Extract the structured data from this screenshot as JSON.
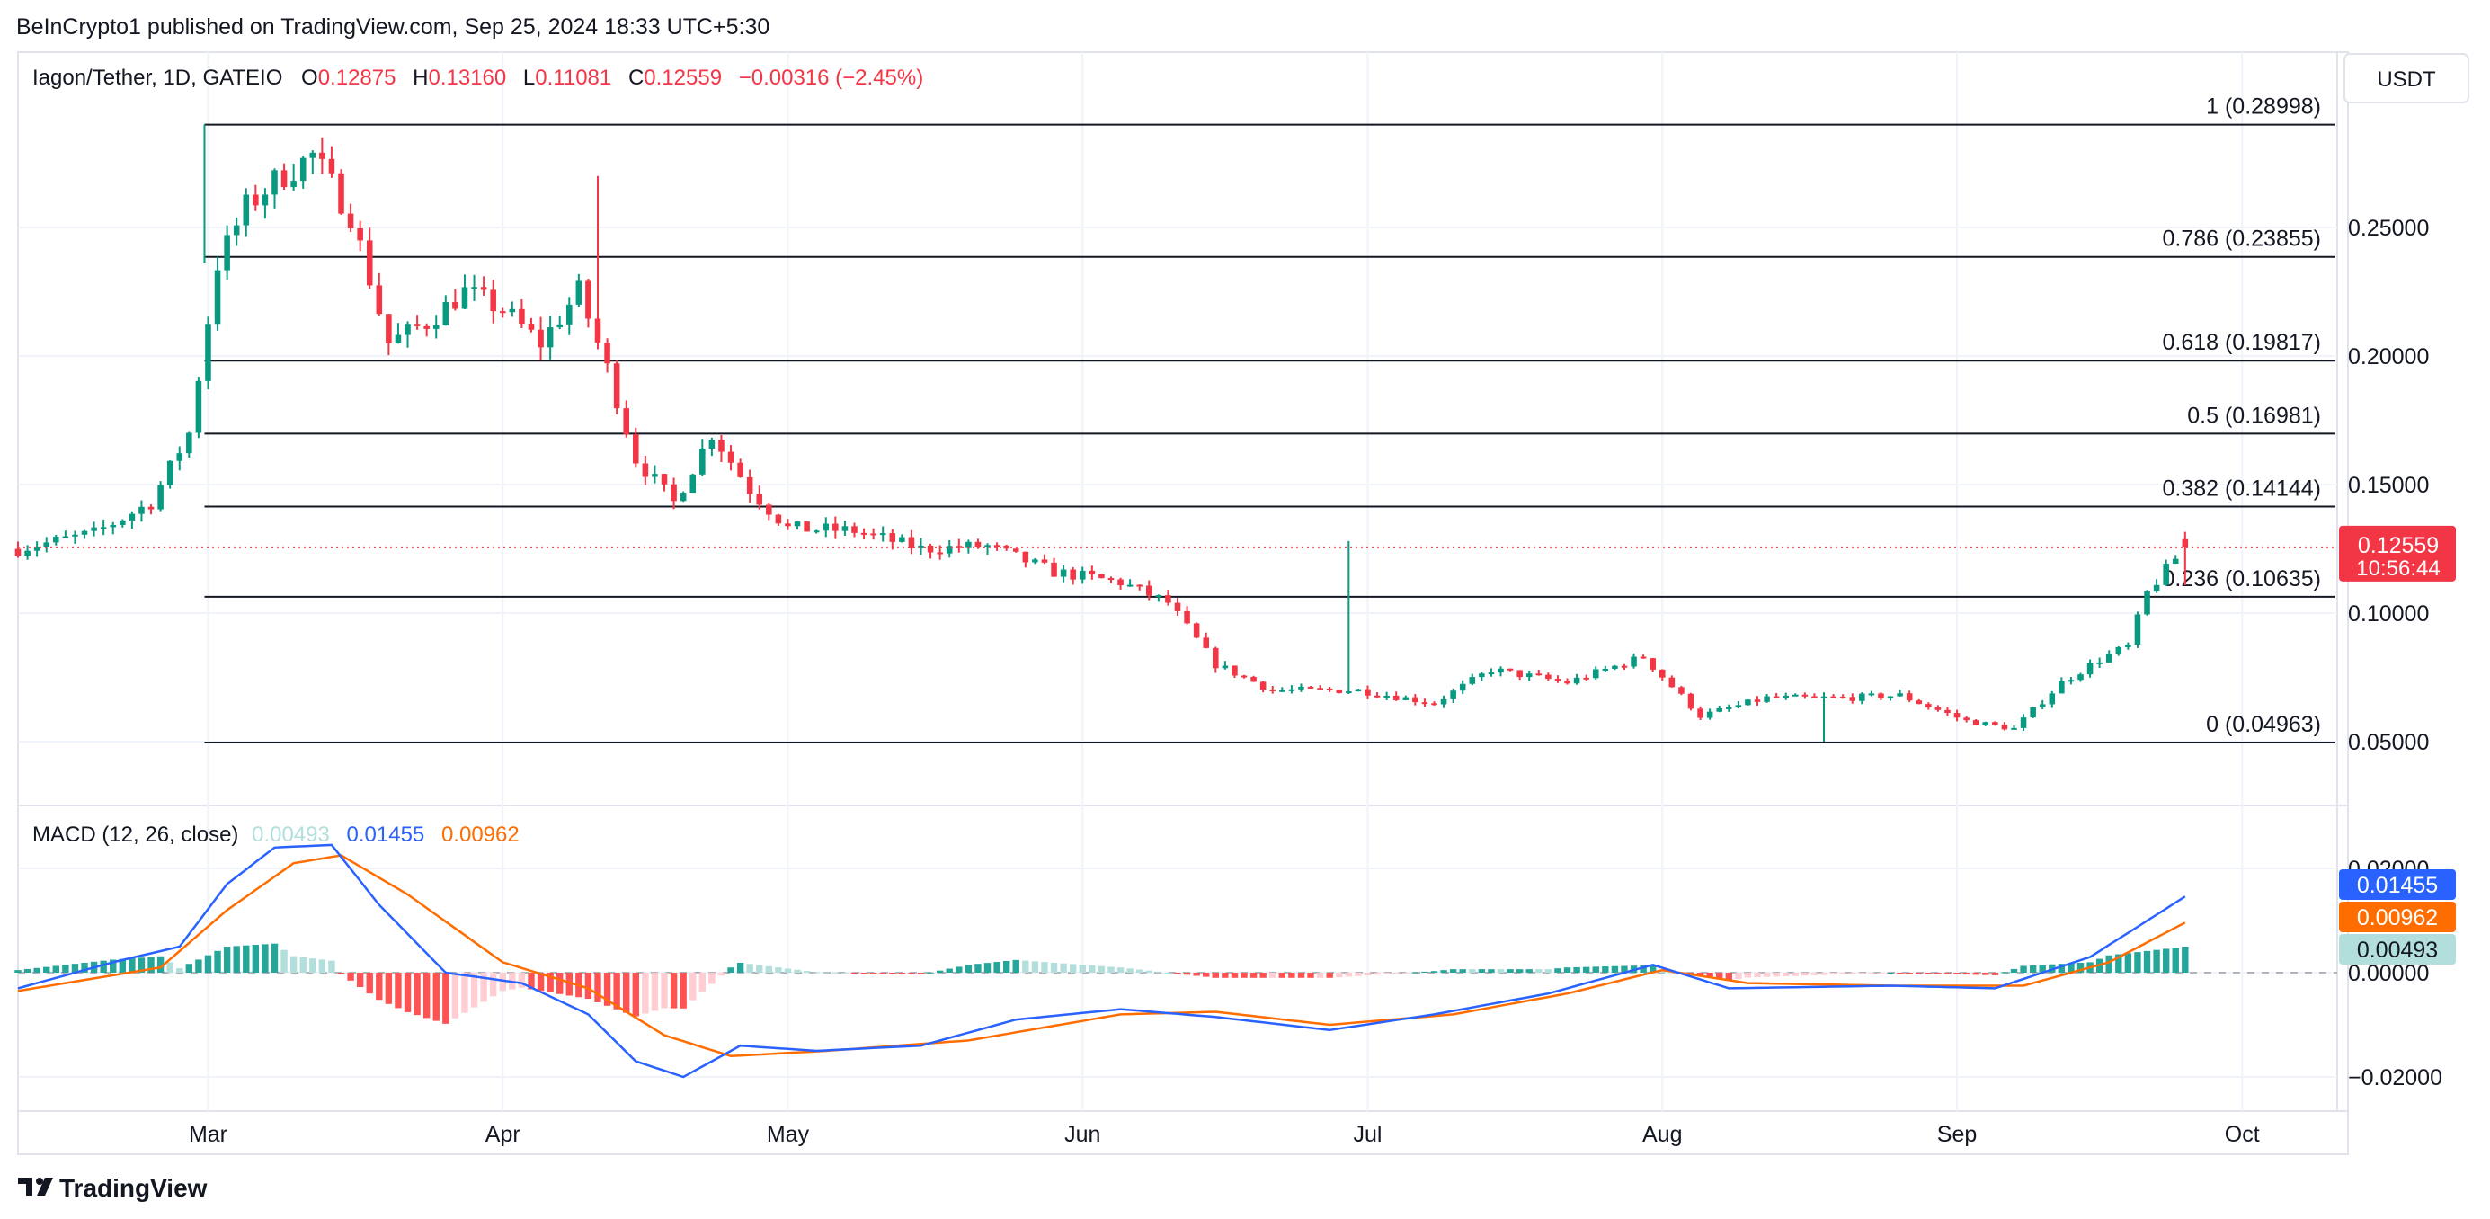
{
  "header": {
    "published": "BeInCrypto1 published on TradingView.com, Sep 25, 2024 18:33 UTC+5:30"
  },
  "legend": {
    "symbol": "Iagon/Tether, 1D, GATEIO",
    "open_label": "O",
    "open": "0.12875",
    "high_label": "H",
    "high": "0.13160",
    "low_label": "L",
    "low": "0.11081",
    "close_label": "C",
    "close": "0.12559",
    "change": "−0.00316 (−2.45%)"
  },
  "currency_button": "USDT",
  "price_axis": {
    "ticks": [
      {
        "value": 0.25,
        "label": "0.25000"
      },
      {
        "value": 0.2,
        "label": "0.20000"
      },
      {
        "value": 0.15,
        "label": "0.15000"
      },
      {
        "value": 0.1,
        "label": "0.10000"
      },
      {
        "value": 0.05,
        "label": "0.05000"
      }
    ],
    "last_price": {
      "label": "0.12559",
      "countdown": "10:56:44",
      "color": "#f23645"
    }
  },
  "macd_axis": {
    "ticks": [
      {
        "value": 0.02,
        "label": "0.02000"
      },
      {
        "value": 0.0,
        "label": "0.00000"
      },
      {
        "value": -0.02,
        "label": "−0.02000"
      }
    ],
    "badges": [
      {
        "label": "0.01455",
        "color": "#2962ff"
      },
      {
        "label": "0.00962",
        "color": "#ff6d00"
      },
      {
        "label": "0.00493",
        "color": "#b2dfdb"
      }
    ]
  },
  "time_axis": {
    "labels": [
      {
        "label": "Mar",
        "date": "2024-03-01"
      },
      {
        "label": "Apr",
        "date": "2024-04-01"
      },
      {
        "label": "May",
        "date": "2024-05-01"
      },
      {
        "label": "Jun",
        "date": "2024-06-01"
      },
      {
        "label": "Jul",
        "date": "2024-07-01"
      },
      {
        "label": "Aug",
        "date": "2024-08-01"
      },
      {
        "label": "Sep",
        "date": "2024-09-01"
      },
      {
        "label": "Oct",
        "date": "2024-10-01"
      }
    ]
  },
  "fibonacci": [
    {
      "label": "1 (0.28998)",
      "value": 0.28998
    },
    {
      "label": "0.786 (0.23855)",
      "value": 0.23855
    },
    {
      "label": "0.618 (0.19817)",
      "value": 0.19817
    },
    {
      "label": "0.5 (0.16981)",
      "value": 0.16981
    },
    {
      "label": "0.382 (0.14144)",
      "value": 0.14144
    },
    {
      "label": "0.236 (0.10635)",
      "value": 0.10635
    },
    {
      "label": "0 (0.04963)",
      "value": 0.04963
    }
  ],
  "macd_legend": {
    "title": "MACD (12, 26, close)",
    "histogram": "0.00493",
    "macd": "0.01455",
    "signal": "0.00962"
  },
  "brand": "TradingView",
  "colors": {
    "up": "#089981",
    "down": "#f23645",
    "macd": "#2962ff",
    "signal": "#ff6d00",
    "hist_up_strong": "#26a69a",
    "hist_up_weak": "#b2dfdb",
    "hist_down_strong": "#ff5252",
    "hist_down_weak": "#ffcdd2"
  },
  "chart_data": {
    "type": "candlestick",
    "x_range": [
      "2024-02-10",
      "2024-10-11"
    ],
    "price_range": [
      0.0,
      0.31
    ],
    "macd_range": [
      -0.0215,
      0.023
    ],
    "price_anchors": [
      [
        "2024-02-10",
        0.125
      ],
      [
        "2024-02-18",
        0.131
      ],
      [
        "2024-02-24",
        0.143
      ],
      [
        "2024-02-28",
        0.17
      ],
      [
        "2024-03-02",
        0.236
      ],
      [
        "2024-03-05",
        0.258
      ],
      [
        "2024-03-08",
        0.268
      ],
      [
        "2024-03-12",
        0.278
      ],
      [
        "2024-03-16",
        0.255
      ],
      [
        "2024-03-20",
        0.205
      ],
      [
        "2024-03-24",
        0.213
      ],
      [
        "2024-03-28",
        0.225
      ],
      [
        "2024-04-01",
        0.218
      ],
      [
        "2024-04-05",
        0.205
      ],
      [
        "2024-04-09",
        0.225
      ],
      [
        "2024-04-12",
        0.195
      ],
      [
        "2024-04-15",
        0.16
      ],
      [
        "2024-04-19",
        0.143
      ],
      [
        "2024-04-23",
        0.17
      ],
      [
        "2024-04-27",
        0.148
      ],
      [
        "2024-05-01",
        0.133
      ],
      [
        "2024-05-08",
        0.132
      ],
      [
        "2024-05-15",
        0.125
      ],
      [
        "2024-05-22",
        0.126
      ],
      [
        "2024-05-29",
        0.116
      ],
      [
        "2024-06-05",
        0.112
      ],
      [
        "2024-06-10",
        0.104
      ],
      [
        "2024-06-15",
        0.08
      ],
      [
        "2024-06-21",
        0.07
      ],
      [
        "2024-06-30",
        0.07
      ],
      [
        "2024-07-08",
        0.065
      ],
      [
        "2024-07-14",
        0.078
      ],
      [
        "2024-07-22",
        0.073
      ],
      [
        "2024-07-30",
        0.083
      ],
      [
        "2024-08-05",
        0.06
      ],
      [
        "2024-08-12",
        0.067
      ],
      [
        "2024-08-20",
        0.067
      ],
      [
        "2024-08-26",
        0.068
      ],
      [
        "2024-09-02",
        0.058
      ],
      [
        "2024-09-07",
        0.055
      ],
      [
        "2024-09-12",
        0.073
      ],
      [
        "2024-09-16",
        0.082
      ],
      [
        "2024-09-19",
        0.087
      ],
      [
        "2024-09-21",
        0.108
      ],
      [
        "2024-09-25",
        0.1256
      ]
    ],
    "wick_spikes": [
      {
        "date": "2024-04-11",
        "high": 0.27
      },
      {
        "date": "2024-06-29",
        "high": 0.128
      },
      {
        "date": "2024-08-18",
        "low": 0.05
      }
    ],
    "macd_anchors": [
      [
        "2024-02-10",
        -0.003
      ],
      [
        "2024-02-20",
        0.002
      ],
      [
        "2024-02-27",
        0.005
      ],
      [
        "2024-03-03",
        0.017
      ],
      [
        "2024-03-08",
        0.024
      ],
      [
        "2024-03-14",
        0.0245
      ],
      [
        "2024-03-19",
        0.013
      ],
      [
        "2024-03-26",
        0.0
      ],
      [
        "2024-04-03",
        -0.002
      ],
      [
        "2024-04-10",
        -0.008
      ],
      [
        "2024-04-15",
        -0.017
      ],
      [
        "2024-04-20",
        -0.02
      ],
      [
        "2024-04-26",
        -0.014
      ],
      [
        "2024-05-04",
        -0.015
      ],
      [
        "2024-05-15",
        -0.014
      ],
      [
        "2024-05-25",
        -0.009
      ],
      [
        "2024-06-05",
        -0.007
      ],
      [
        "2024-06-15",
        -0.0085
      ],
      [
        "2024-06-27",
        -0.011
      ],
      [
        "2024-07-08",
        -0.008
      ],
      [
        "2024-07-20",
        -0.004
      ],
      [
        "2024-07-31",
        0.0015
      ],
      [
        "2024-08-08",
        -0.003
      ],
      [
        "2024-08-25",
        -0.0025
      ],
      [
        "2024-09-05",
        -0.003
      ],
      [
        "2024-09-15",
        0.003
      ],
      [
        "2024-09-25",
        0.0146
      ]
    ],
    "signal_anchors": [
      [
        "2024-02-10",
        -0.0035
      ],
      [
        "2024-02-25",
        0.001
      ],
      [
        "2024-03-03",
        0.012
      ],
      [
        "2024-03-10",
        0.021
      ],
      [
        "2024-03-15",
        0.0225
      ],
      [
        "2024-03-22",
        0.015
      ],
      [
        "2024-04-01",
        0.002
      ],
      [
        "2024-04-10",
        -0.003
      ],
      [
        "2024-04-18",
        -0.012
      ],
      [
        "2024-04-25",
        -0.016
      ],
      [
        "2024-05-05",
        -0.015
      ],
      [
        "2024-05-20",
        -0.013
      ],
      [
        "2024-06-05",
        -0.008
      ],
      [
        "2024-06-15",
        -0.0075
      ],
      [
        "2024-06-27",
        -0.01
      ],
      [
        "2024-07-10",
        -0.008
      ],
      [
        "2024-07-22",
        -0.004
      ],
      [
        "2024-08-01",
        0.0005
      ],
      [
        "2024-08-10",
        -0.002
      ],
      [
        "2024-08-25",
        -0.0025
      ],
      [
        "2024-09-08",
        -0.0025
      ],
      [
        "2024-09-17",
        0.002
      ],
      [
        "2024-09-25",
        0.0096
      ]
    ]
  }
}
